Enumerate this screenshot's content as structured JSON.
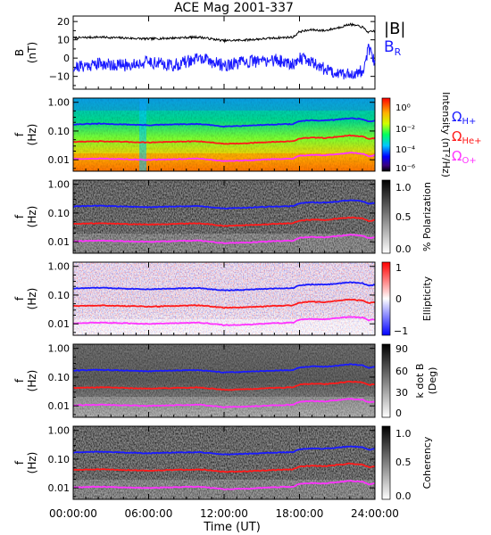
{
  "title": "ACE Mag 2001-337",
  "colors": {
    "b_total": "#000000",
    "b_r": "#1a1aff",
    "h_plus": "#1a1aff",
    "he_plus": "#ff1a1a",
    "o_plus": "#ff33ff"
  },
  "x_axis": {
    "ticks": [
      "00:00:00",
      "06:00:00",
      "12:00:00",
      "18:00:00",
      "24:00:00"
    ],
    "tick_hours": [
      0,
      6,
      12,
      18,
      24
    ],
    "label": "Time (UT)",
    "range_hours": [
      0,
      24
    ]
  },
  "chart_data": [
    {
      "type": "line",
      "panel": "magnetic-field",
      "ylabel": "B (nT)",
      "ylabel_lines": [
        "B",
        "(nT)"
      ],
      "ylim": [
        -17,
        23
      ],
      "yticks": [
        -10,
        0,
        10,
        20
      ],
      "yticklabels": [
        "−10",
        "0",
        "10",
        "20"
      ],
      "x_hours": [
        0,
        2,
        4,
        6,
        8,
        10,
        12,
        14,
        16,
        17.5,
        18,
        19,
        20,
        21,
        22,
        23,
        23.5,
        24
      ],
      "series": [
        {
          "name": "|B|",
          "values": [
            11,
            11.5,
            11,
            10.5,
            11,
            11.5,
            9.5,
            10,
            11,
            11.5,
            14.5,
            15.5,
            15,
            16.5,
            18.5,
            17,
            14,
            15
          ]
        },
        {
          "name": "B",
          "name_subscript": "R",
          "values": [
            -5,
            -3,
            -4,
            -2,
            -4,
            0,
            -4,
            -2,
            -1,
            -3,
            0,
            -2,
            -6,
            -8,
            -9,
            -7,
            5,
            -3
          ]
        }
      ],
      "legend": "right"
    },
    {
      "type": "heatmap",
      "panel": "intensity",
      "ylabel": "f (Hz)",
      "yticklabels": [
        "1.00",
        "0.10",
        "0.01"
      ],
      "ylim": [
        0.004,
        1.4
      ],
      "colorbar": {
        "label": "Intensity (nT²/Hz)",
        "ticks": [
          "10⁰",
          "10⁻²",
          "10⁻⁴",
          "10⁻⁶"
        ],
        "scale": "rainbow"
      },
      "legend_labels": [
        {
          "symbol": "Ω",
          "sub": "H+"
        },
        {
          "symbol": "Ω",
          "sub": "He+"
        },
        {
          "symbol": "Ω",
          "sub": "O+"
        }
      ]
    },
    {
      "type": "heatmap",
      "panel": "polarization",
      "ylabel": "f (Hz)",
      "yticklabels": [
        "1.00",
        "0.10",
        "0.01"
      ],
      "colorbar": {
        "label": "% Polarization",
        "ticks": [
          "1.0",
          "0.5",
          "0.0"
        ],
        "scale": "grayscale"
      }
    },
    {
      "type": "heatmap",
      "panel": "ellipticity",
      "ylabel": "f (Hz)",
      "yticklabels": [
        "1.00",
        "0.10",
        "0.01"
      ],
      "colorbar": {
        "label": "Ellipticity",
        "ticks": [
          "1",
          "0",
          "−1"
        ],
        "scale": "blue-white-red"
      }
    },
    {
      "type": "heatmap",
      "panel": "k-dot-b",
      "ylabel": "f (Hz)",
      "yticklabels": [
        "1.00",
        "0.10",
        "0.01"
      ],
      "colorbar": {
        "label": "k dot B (Deg)",
        "label_lines": [
          "k dot B",
          "(Deg)"
        ],
        "ticks": [
          "90",
          "60",
          "30",
          "0"
        ],
        "scale": "grayscale"
      }
    },
    {
      "type": "heatmap",
      "panel": "coherency",
      "ylabel": "f (Hz)",
      "yticklabels": [
        "1.00",
        "0.10",
        "0.01"
      ],
      "colorbar": {
        "label": "Coherency",
        "ticks": [
          "1.0",
          "0.5",
          "0.0"
        ],
        "scale": "grayscale"
      }
    }
  ],
  "gyrofrequency_lines": {
    "x_hours": [
      0,
      2,
      4,
      6,
      8,
      10,
      12,
      14,
      16,
      17.5,
      18,
      19,
      20,
      21,
      22,
      23,
      23.5,
      24
    ],
    "h_plus_hz": [
      0.17,
      0.18,
      0.17,
      0.16,
      0.17,
      0.175,
      0.145,
      0.155,
      0.17,
      0.175,
      0.22,
      0.235,
      0.23,
      0.25,
      0.28,
      0.26,
      0.21,
      0.23
    ],
    "he_plus_hz": [
      0.042,
      0.044,
      0.042,
      0.04,
      0.042,
      0.044,
      0.036,
      0.038,
      0.042,
      0.044,
      0.055,
      0.059,
      0.057,
      0.063,
      0.07,
      0.065,
      0.053,
      0.057
    ],
    "o_plus_hz": [
      0.0105,
      0.011,
      0.0105,
      0.01,
      0.0105,
      0.011,
      0.009,
      0.0095,
      0.0105,
      0.011,
      0.0138,
      0.0148,
      0.0143,
      0.0158,
      0.0175,
      0.0163,
      0.0133,
      0.0143
    ]
  }
}
